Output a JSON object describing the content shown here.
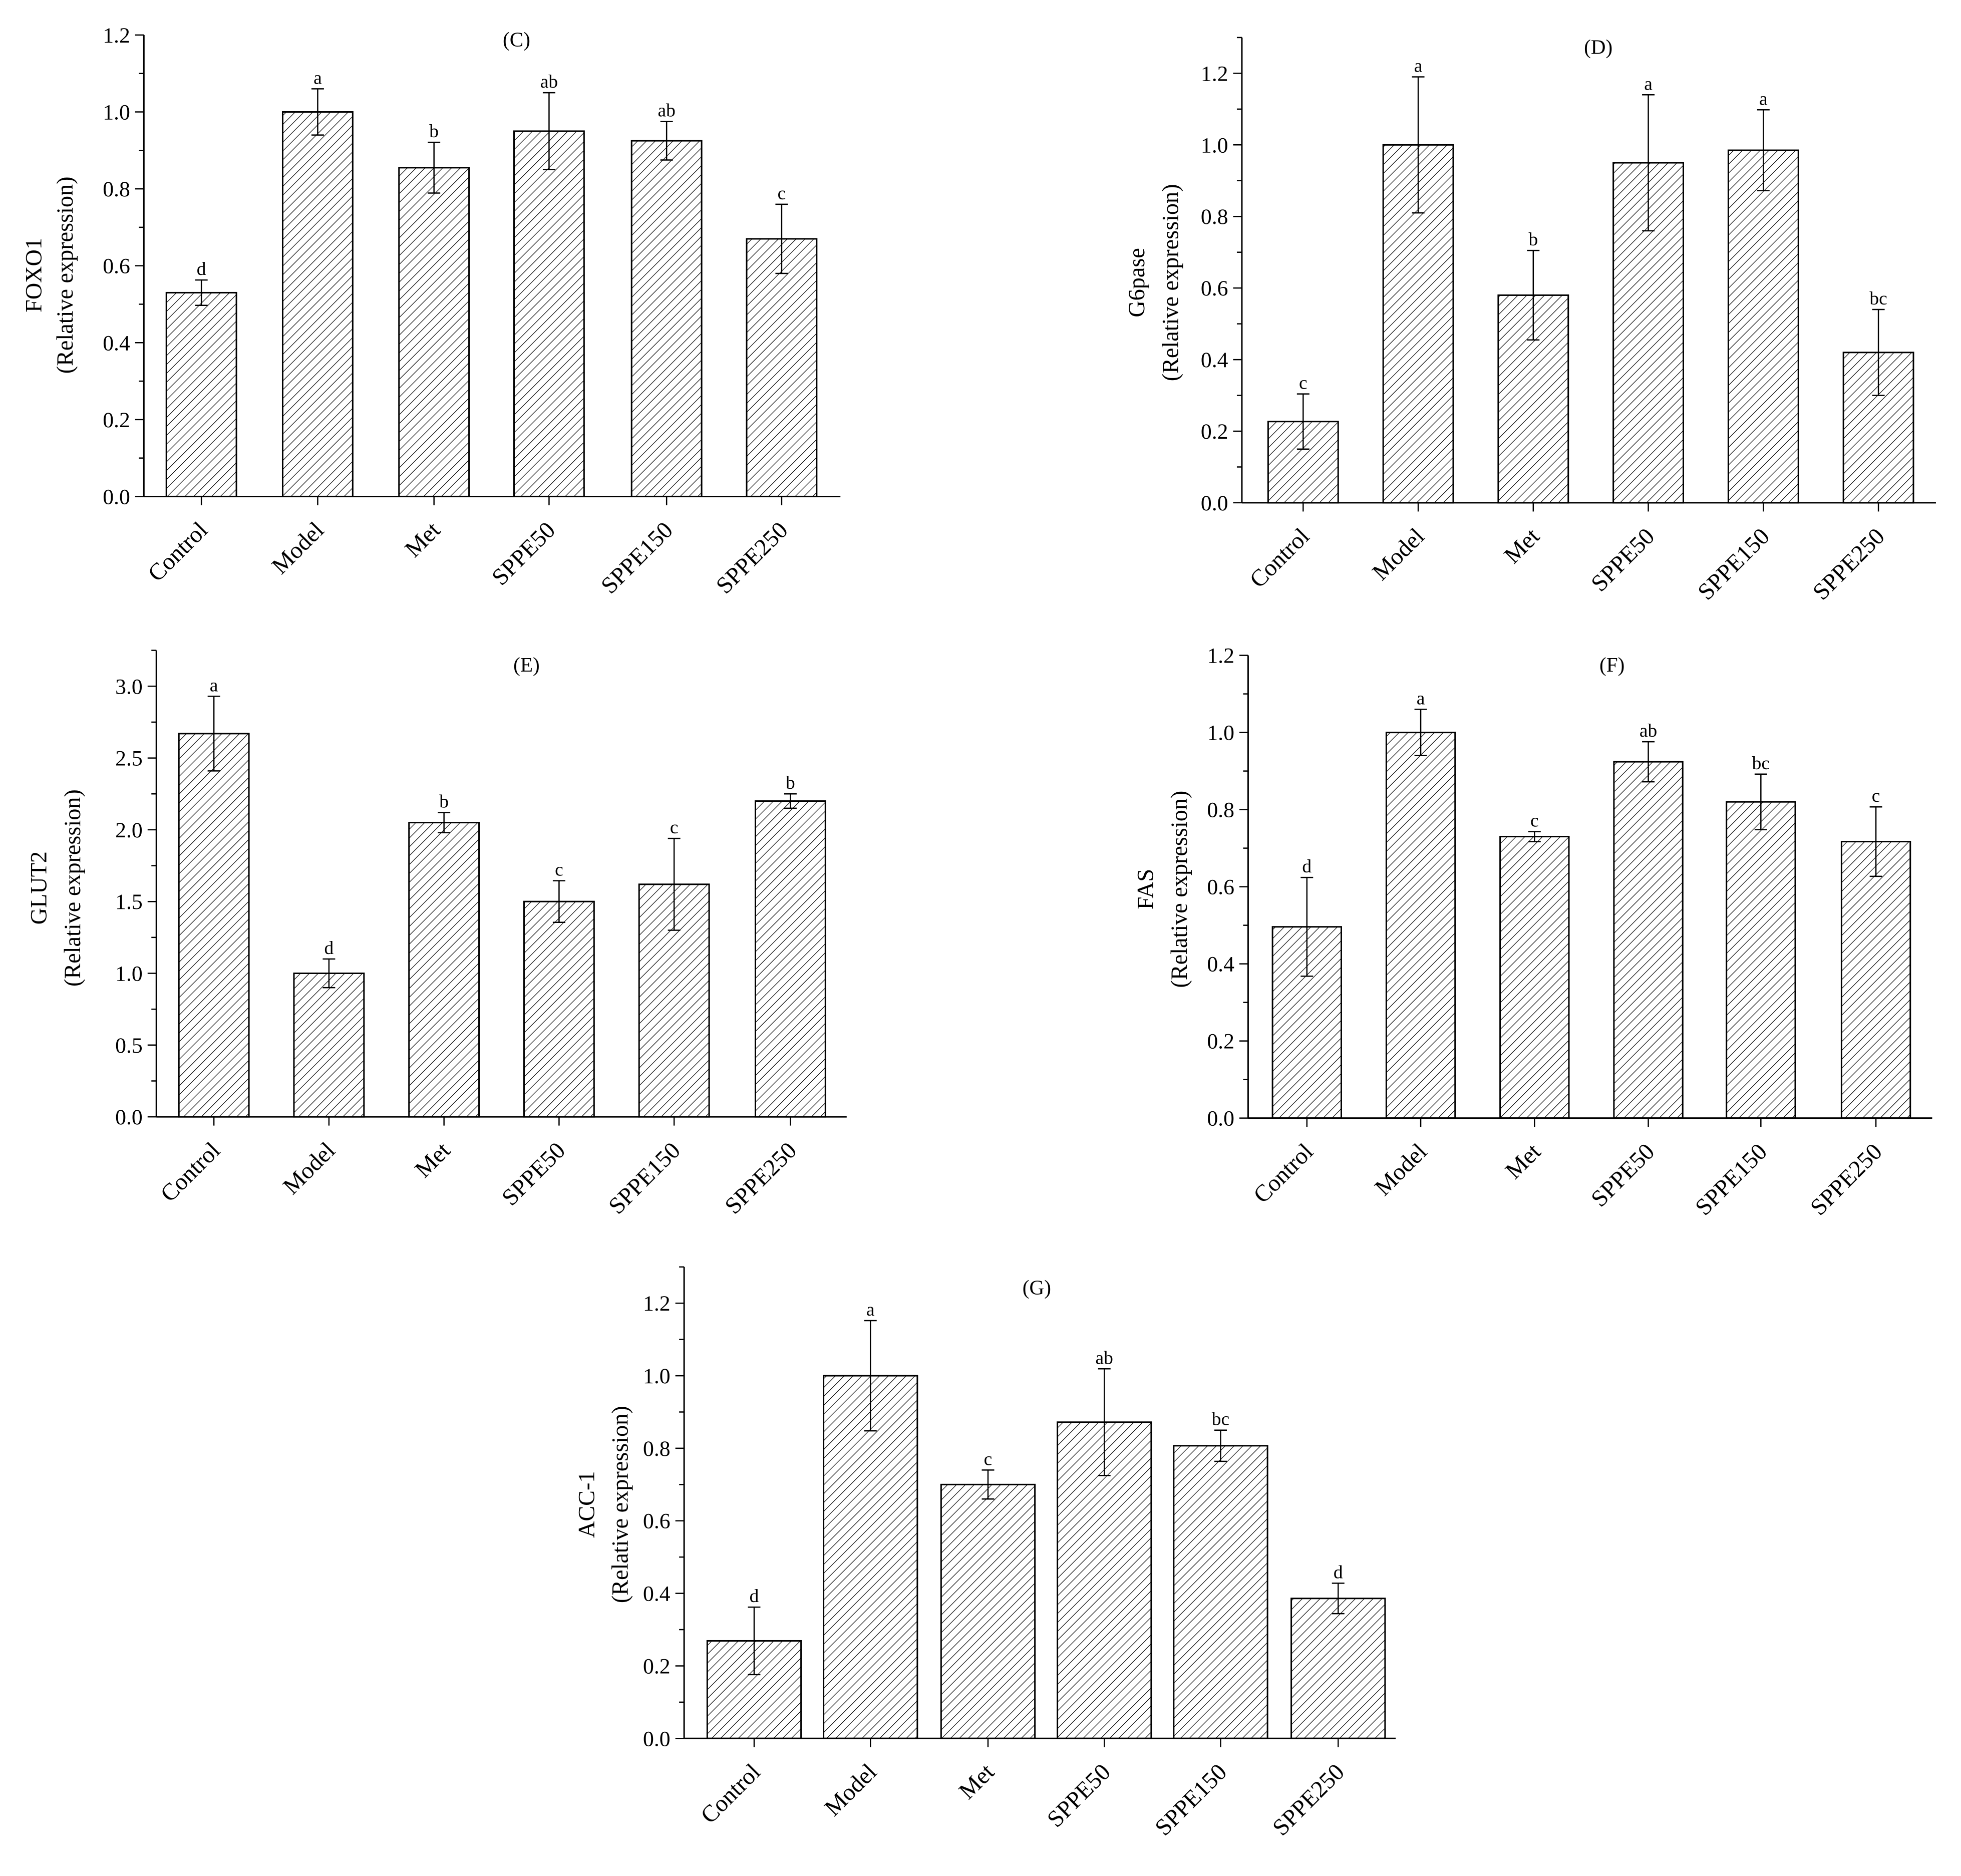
{
  "chart_data": [
    {
      "type": "bar",
      "panel_label": "(C)",
      "ylabel": "FOXO1",
      "ylabel_unit": "(Relative expression)",
      "categories": [
        "Control",
        "Model",
        "Met",
        "SPPE50",
        "SPPE150",
        "SPPE250"
      ],
      "values": [
        0.53,
        1.0,
        0.855,
        0.95,
        0.925,
        0.67
      ],
      "errors": [
        0.033,
        0.06,
        0.066,
        0.1,
        0.05,
        0.09
      ],
      "letters": [
        "d",
        "a",
        "b",
        "ab",
        "ab",
        "c"
      ],
      "ylim": [
        0,
        1.2
      ],
      "yticks": [
        "0.0",
        "0.2",
        "0.4",
        "0.6",
        "0.8",
        "1.0",
        "1.2"
      ],
      "bar_edge_color": "#000000",
      "grid": false
    },
    {
      "type": "bar",
      "panel_label": "(D)",
      "ylabel": "G6pase",
      "ylabel_unit": "(Relative expression)",
      "categories": [
        "Control",
        "Model",
        "Met",
        "SPPE50",
        "SPPE150",
        "SPPE250"
      ],
      "values": [
        0.227,
        1.0,
        0.58,
        0.95,
        0.985,
        0.42
      ],
      "errors": [
        0.077,
        0.19,
        0.125,
        0.19,
        0.113,
        0.12
      ],
      "letters": [
        "c",
        "a",
        "b",
        "a",
        "a",
        "bc"
      ],
      "ylim": [
        0,
        1.3
      ],
      "yticks": [
        "0.0",
        "0.2",
        "0.4",
        "0.6",
        "0.8",
        "1.0",
        "1.2"
      ],
      "bar_edge_color": "#000000",
      "grid": false
    },
    {
      "type": "bar",
      "panel_label": "(E)",
      "ylabel": "GLUT2",
      "ylabel_unit": "(Relative expression)",
      "categories": [
        "Control",
        "Model",
        "Met",
        "SPPE50",
        "SPPE150",
        "SPPE250"
      ],
      "values": [
        2.67,
        1.0,
        2.05,
        1.5,
        1.62,
        2.2
      ],
      "errors": [
        0.26,
        0.1,
        0.07,
        0.145,
        0.32,
        0.05
      ],
      "letters": [
        "a",
        "d",
        "b",
        "c",
        "c",
        "b"
      ],
      "ylim": [
        0,
        3.25
      ],
      "yticks": [
        "0.0",
        "0.5",
        "1.0",
        "1.5",
        "2.0",
        "2.5",
        "3.0"
      ],
      "bar_edge_color": "#000000",
      "grid": false
    },
    {
      "type": "bar",
      "panel_label": "(F)",
      "ylabel": "FAS",
      "ylabel_unit": "(Relative expression)",
      "categories": [
        "Control",
        "Model",
        "Met",
        "SPPE50",
        "SPPE150",
        "SPPE250"
      ],
      "values": [
        0.496,
        1.0,
        0.73,
        0.924,
        0.82,
        0.717
      ],
      "errors": [
        0.128,
        0.06,
        0.013,
        0.052,
        0.072,
        0.09
      ],
      "letters": [
        "d",
        "a",
        "c",
        "ab",
        "bc",
        "c"
      ],
      "ylim": [
        0,
        1.2
      ],
      "yticks": [
        "0.0",
        "0.2",
        "0.4",
        "0.6",
        "0.8",
        "1.0",
        "1.2"
      ],
      "bar_edge_color": "#000000",
      "grid": false
    },
    {
      "type": "bar",
      "panel_label": "(G)",
      "ylabel": "ACC-1",
      "ylabel_unit": "(Relative expression)",
      "categories": [
        "Control",
        "Model",
        "Met",
        "SPPE50",
        "SPPE150",
        "SPPE250"
      ],
      "values": [
        0.269,
        1.0,
        0.7,
        0.872,
        0.807,
        0.386
      ],
      "errors": [
        0.093,
        0.152,
        0.04,
        0.147,
        0.043,
        0.042
      ],
      "letters": [
        "d",
        "a",
        "c",
        "ab",
        "bc",
        "d"
      ],
      "ylim": [
        0,
        1.3
      ],
      "yticks": [
        "0.0",
        "0.2",
        "0.4",
        "0.6",
        "0.8",
        "1.0",
        "1.2"
      ],
      "bar_edge_color": "#000000",
      "grid": false
    }
  ]
}
